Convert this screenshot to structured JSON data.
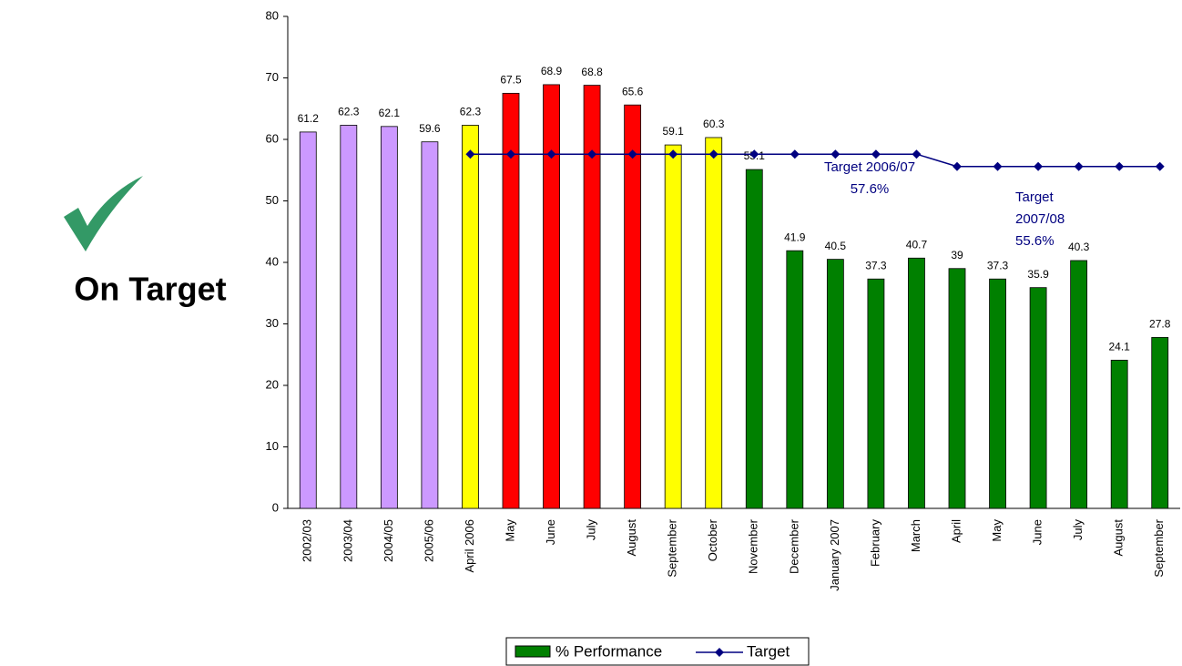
{
  "chart_data": {
    "type": "bar",
    "status": "On Target",
    "categories": [
      "2002/03",
      "2003/04",
      "2004/05",
      "2005/06",
      "April 2006",
      "May",
      "June",
      "July",
      "August",
      "September",
      "October",
      "November",
      "December",
      "January 2007",
      "February",
      "March",
      "April",
      "May",
      "June",
      "July",
      "August",
      "September"
    ],
    "series": [
      {
        "name": "% Performance",
        "type": "bar",
        "color": "#008000",
        "colors": [
          "#cc99ff",
          "#cc99ff",
          "#cc99ff",
          "#cc99ff",
          "#ffff00",
          "#ff0000",
          "#ff0000",
          "#ff0000",
          "#ff0000",
          "#ffff00",
          "#ffff00",
          "#008000",
          "#008000",
          "#008000",
          "#008000",
          "#008000",
          "#008000",
          "#008000",
          "#008000",
          "#008000",
          "#008000",
          "#008000"
        ],
        "values": [
          61.2,
          62.3,
          62.1,
          59.6,
          62.3,
          67.5,
          68.9,
          68.8,
          65.6,
          59.1,
          60.3,
          55.1,
          41.9,
          40.5,
          37.3,
          40.7,
          39,
          37.3,
          35.9,
          40.3,
          24.1,
          27.8
        ]
      },
      {
        "name": "Target",
        "type": "line",
        "color": "#000080",
        "values": [
          null,
          null,
          null,
          null,
          57.6,
          57.6,
          57.6,
          57.6,
          57.6,
          57.6,
          57.6,
          57.6,
          57.6,
          57.6,
          57.6,
          57.6,
          55.6,
          55.6,
          55.6,
          55.6,
          55.6,
          55.6
        ]
      }
    ],
    "annotations": [
      {
        "lines": [
          "Target 2006/07",
          "57.6%"
        ]
      },
      {
        "lines": [
          "Target",
          "2007/08",
          "55.6%"
        ]
      }
    ],
    "ylim": [
      0,
      80
    ],
    "yticks": [
      0,
      10,
      20,
      30,
      40,
      50,
      60,
      70,
      80
    ],
    "grid": false
  }
}
